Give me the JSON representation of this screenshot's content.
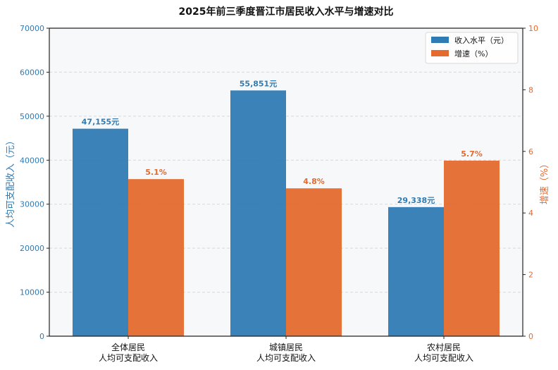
{
  "chart_data": {
    "type": "bar",
    "title": "2025年前三季度晋江市居民收入水平与增速对比",
    "categories": [
      [
        "全体居民",
        "人均可支配收入"
      ],
      [
        "城镇居民",
        "人均可支配收入"
      ],
      [
        "农村居民",
        "人均可支配收入"
      ]
    ],
    "series": [
      {
        "name": "收入水平（元）",
        "axis": "left",
        "color": "#2f7bb3",
        "values": [
          47155,
          55851,
          29338
        ],
        "labels": [
          "47,155元",
          "55,851元",
          "29,338元"
        ]
      },
      {
        "name": "增速（%）",
        "axis": "right",
        "color": "#e46a2e",
        "values": [
          5.1,
          4.8,
          5.7
        ],
        "labels": [
          "5.1%",
          "4.8%",
          "5.7%"
        ]
      }
    ],
    "ylabel_left": "人均可支配收入（元）",
    "ylabel_right": "增速（%）",
    "ylim_left": [
      0,
      70000
    ],
    "ylim_right": [
      0,
      10
    ],
    "yticks_left": [
      "0",
      "10000",
      "20000",
      "30000",
      "40000",
      "50000",
      "60000",
      "70000"
    ],
    "yticks_right": [
      "0",
      "2",
      "4",
      "6",
      "8",
      "10"
    ],
    "grid": true,
    "legend": "top-right",
    "left_color": "#2f7bb3",
    "right_color": "#e46a2e"
  }
}
